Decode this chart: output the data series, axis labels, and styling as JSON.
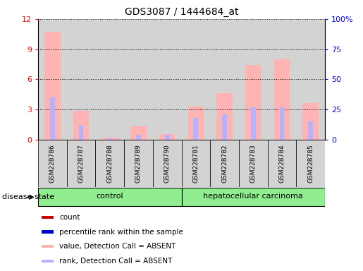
{
  "title": "GDS3087 / 1444684_at",
  "samples": [
    "GSM228786",
    "GSM228787",
    "GSM228788",
    "GSM228789",
    "GSM228790",
    "GSM228781",
    "GSM228782",
    "GSM228783",
    "GSM228784",
    "GSM228785"
  ],
  "values_absent": [
    10.7,
    2.85,
    0.18,
    1.35,
    0.55,
    3.3,
    4.65,
    7.4,
    8.0,
    3.6
  ],
  "rank_absent": [
    35,
    12,
    1,
    4,
    4,
    18,
    21,
    27,
    27,
    15
  ],
  "ylim_left": [
    0,
    12
  ],
  "ylim_right": [
    0,
    100
  ],
  "yticks_left": [
    0,
    3,
    6,
    9,
    12
  ],
  "yticks_right": [
    0,
    25,
    50,
    75,
    100
  ],
  "yticklabels_right": [
    "0",
    "25",
    "50",
    "75",
    "100%"
  ],
  "color_value_absent": "#ffb3b3",
  "color_rank_absent": "#b3b3ff",
  "color_count": "#cc0000",
  "color_percentile": "#0000cc",
  "col_bg_color": "#d3d3d3",
  "group_color": "#90ee90",
  "disease_state_label": "disease state",
  "group_label_control": "control",
  "group_label_hcc": "hepatocellular carcinoma",
  "n_control": 5,
  "n_hcc": 5,
  "legend_items": [
    [
      "#cc0000",
      "count"
    ],
    [
      "#0000cc",
      "percentile rank within the sample"
    ],
    [
      "#ffb3b3",
      "value, Detection Call = ABSENT"
    ],
    [
      "#b3b3ff",
      "rank, Detection Call = ABSENT"
    ]
  ]
}
